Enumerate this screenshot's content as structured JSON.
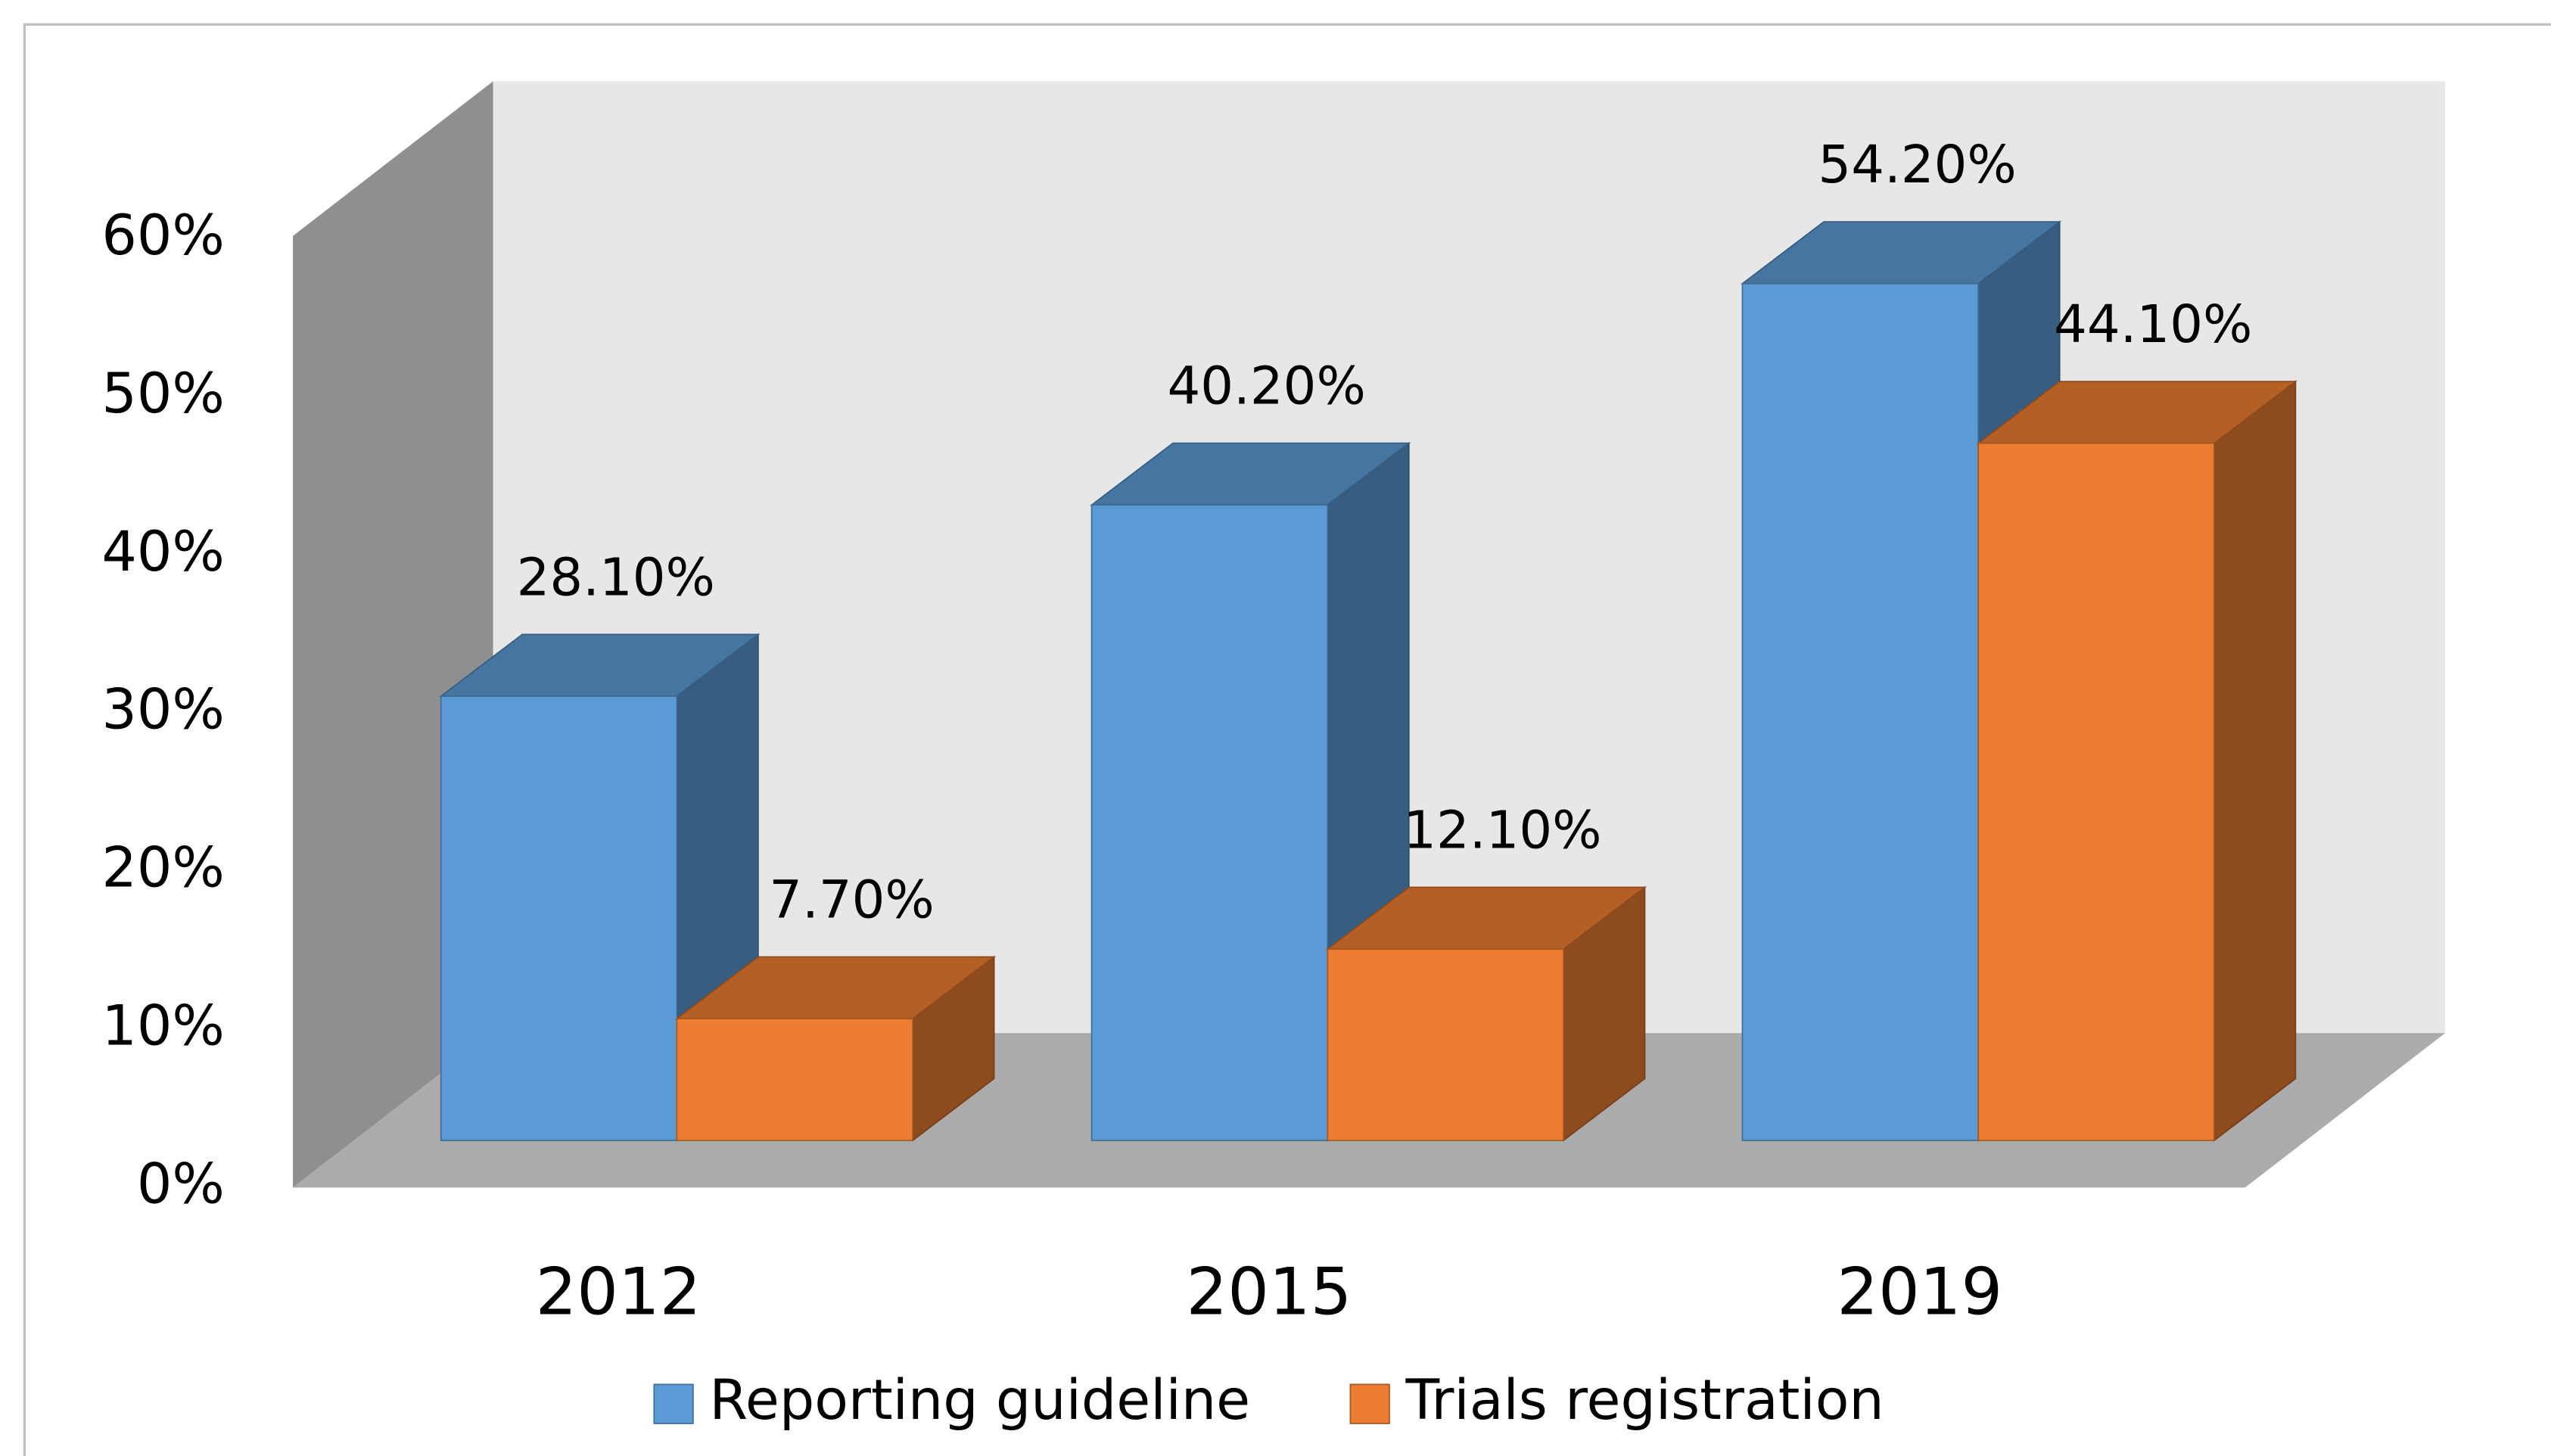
{
  "chart_data": {
    "type": "bar3d",
    "categories": [
      "2012",
      "2015",
      "2019"
    ],
    "series": [
      {
        "name": "Reporting guideline",
        "color": "#5b9bd5",
        "values": [
          28.1,
          40.2,
          54.2
        ],
        "value_labels": [
          "28.10%",
          "40.20%",
          "54.20%"
        ]
      },
      {
        "name": "Trials registration",
        "color": "#ed7d31",
        "values": [
          7.7,
          12.1,
          44.1
        ],
        "value_labels": [
          "7.70%",
          "12.10%",
          "44.10%"
        ]
      }
    ],
    "ylim": [
      0,
      60
    ],
    "yticks": [
      {
        "value": 0,
        "label": "0%"
      },
      {
        "value": 10,
        "label": "10%"
      },
      {
        "value": 20,
        "label": "20%"
      },
      {
        "value": 30,
        "label": "30%"
      },
      {
        "value": 40,
        "label": "40%"
      },
      {
        "value": 50,
        "label": "50%"
      },
      {
        "value": 60,
        "label": "60%"
      }
    ],
    "grid": false,
    "legend": "bottom"
  }
}
